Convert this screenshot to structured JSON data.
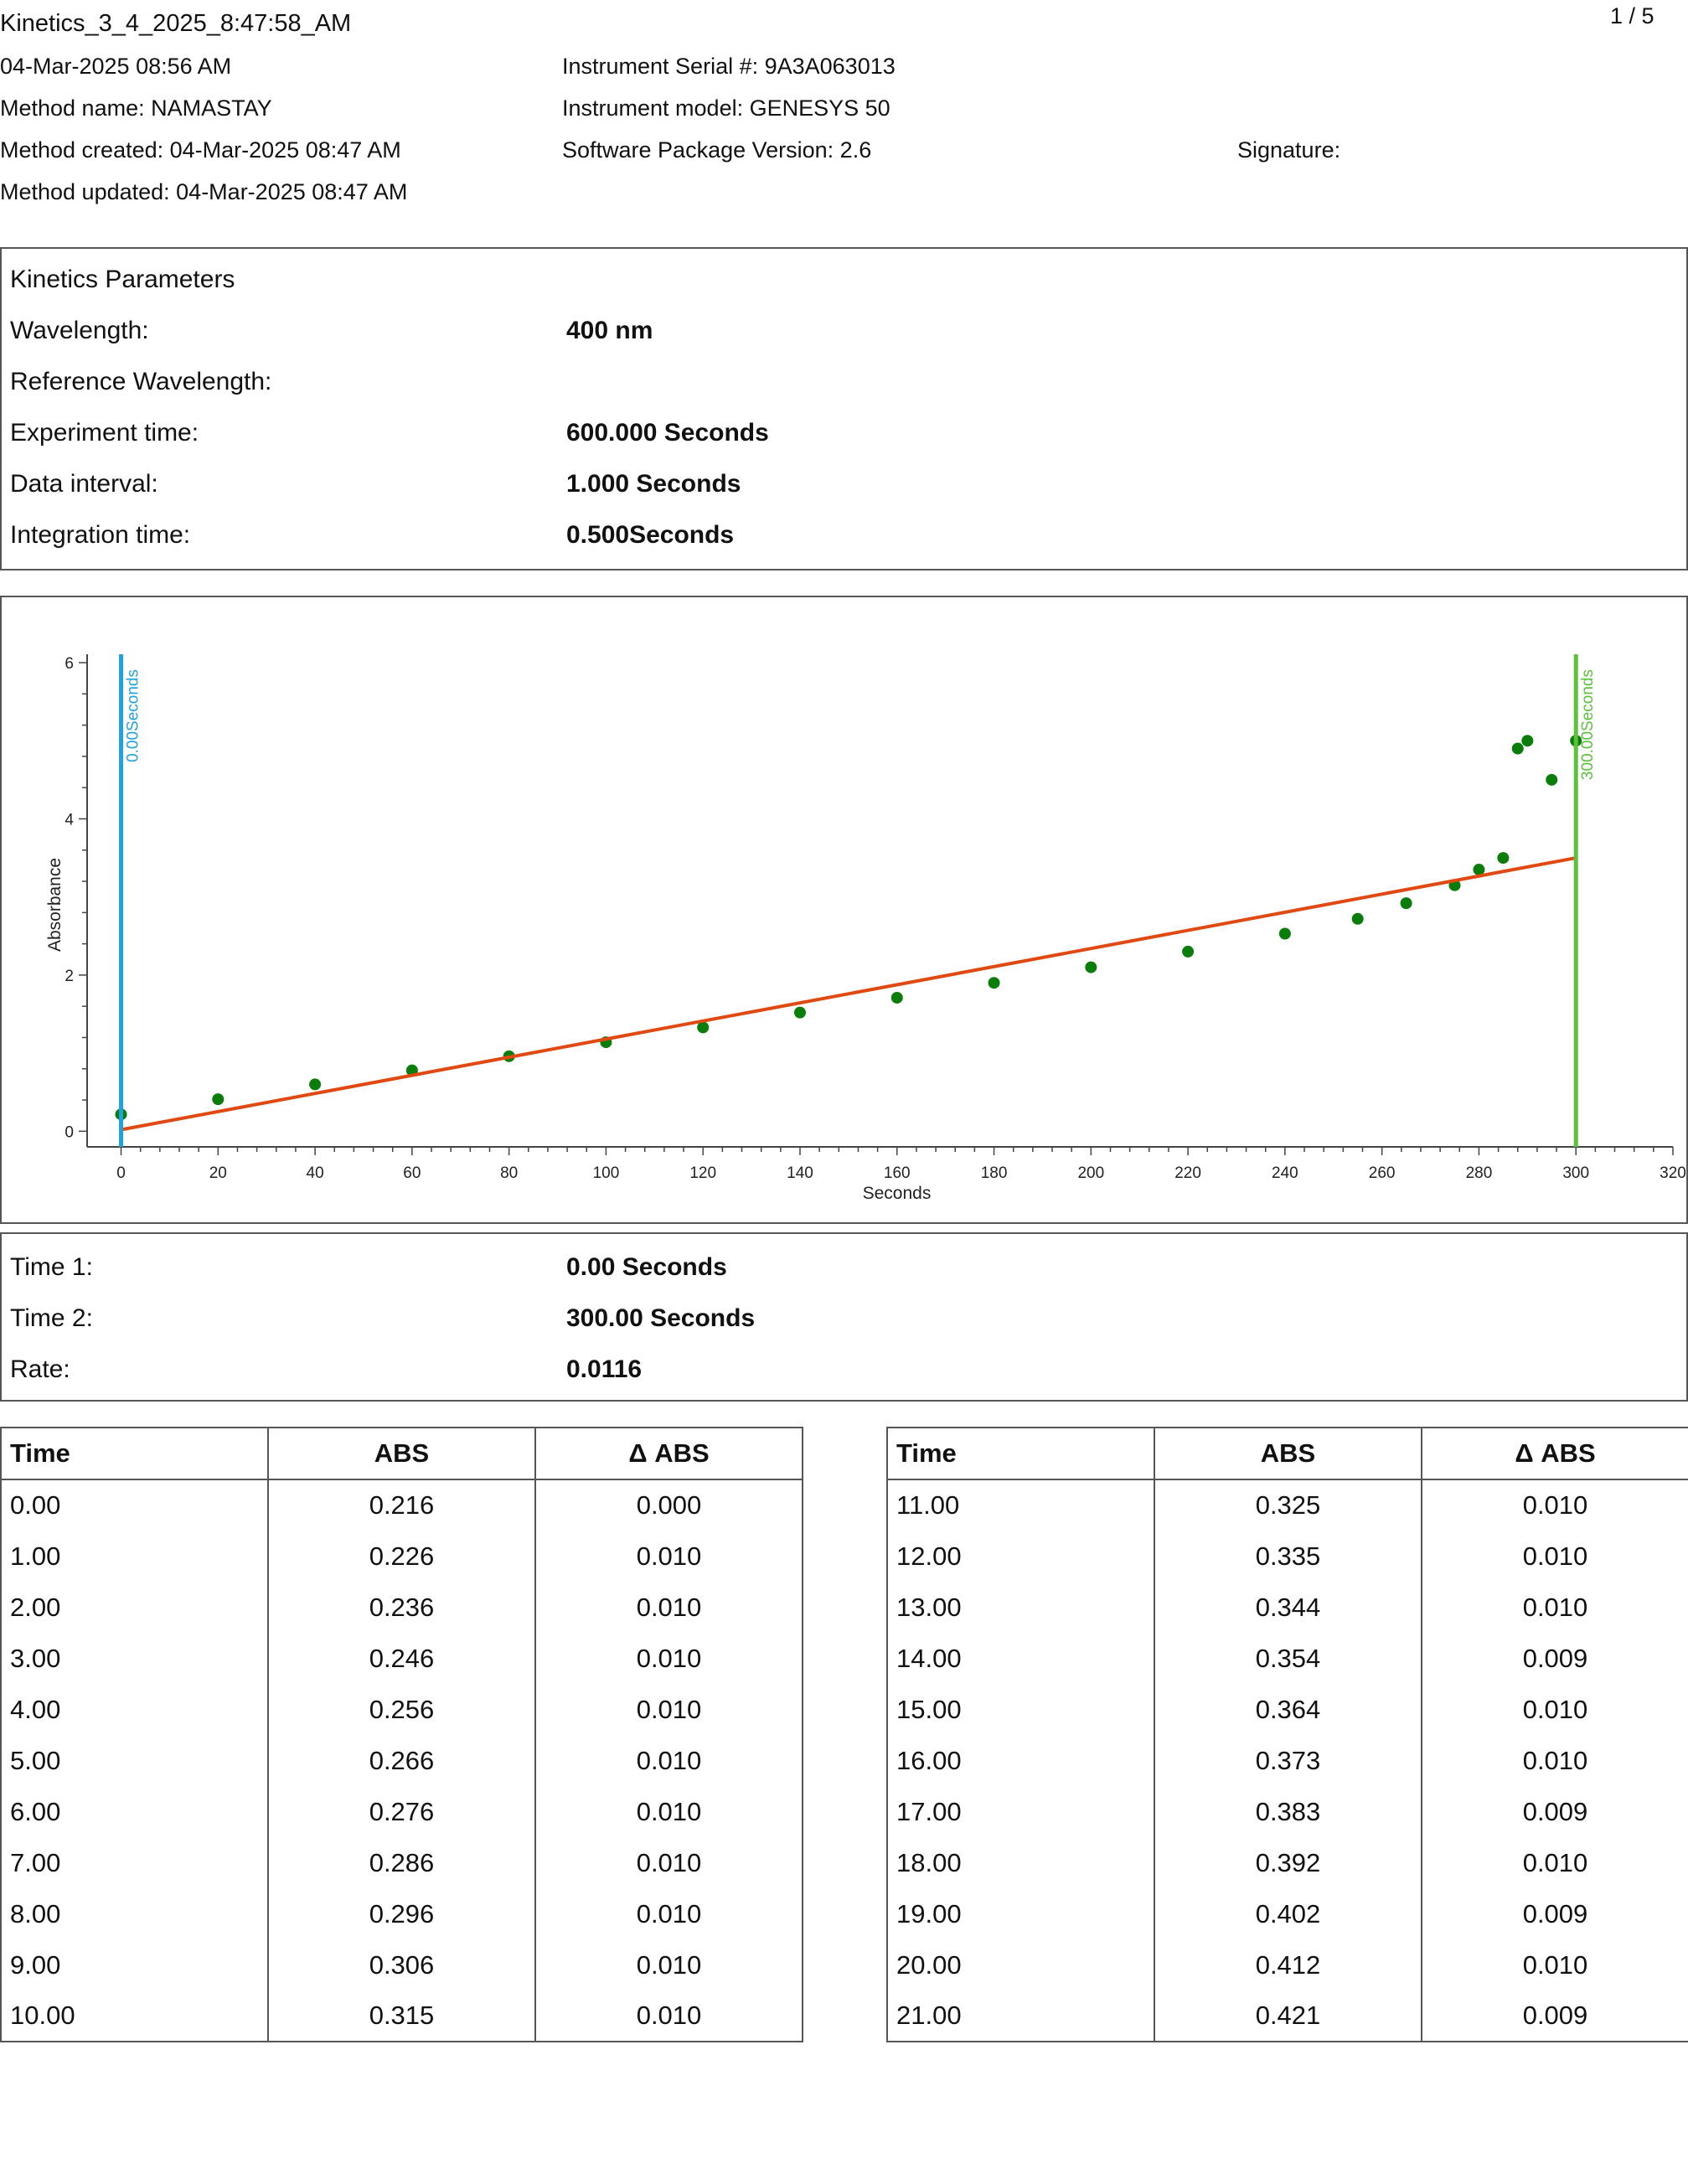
{
  "header": {
    "file_title": "Kinetics_3_4_2025_8:47:58_AM",
    "page_indicator": "1 / 5",
    "datetime": "04-Mar-2025 08:56 AM",
    "method_name": "Method name: NAMASTAY",
    "method_created": "Method created: 04-Mar-2025 08:47 AM",
    "method_updated": "Method updated: 04-Mar-2025 08:47 AM",
    "instrument_serial": "Instrument Serial #: 9A3A063013",
    "instrument_model": "Instrument model: GENESYS 50",
    "software_version": "Software Package Version: 2.6",
    "signature": "Signature:"
  },
  "parameters": {
    "heading": "Kinetics Parameters",
    "rows": [
      {
        "label": "Wavelength:",
        "value": "400 nm"
      },
      {
        "label": "Reference Wavelength:",
        "value": ""
      },
      {
        "label": "Experiment time:",
        "value": "600.000 Seconds"
      },
      {
        "label": "Data interval:",
        "value": "1.000 Seconds"
      },
      {
        "label": "Integration time:",
        "value": "0.500Seconds"
      }
    ]
  },
  "chart_data": {
    "type": "scatter",
    "xlabel": "Seconds",
    "ylabel": "Absorbance",
    "xlim": [
      -7,
      320
    ],
    "ylim": [
      -0.2,
      6.0
    ],
    "x_ticks": [
      0,
      20,
      40,
      60,
      80,
      100,
      120,
      140,
      160,
      180,
      200,
      220,
      240,
      260,
      280,
      300,
      320
    ],
    "y_ticks": [
      0,
      2,
      4,
      6
    ],
    "grid": false,
    "series": [
      {
        "color": "#0a7d0a",
        "model": "absorbance readings, one per second from 0 to 300 s; ~0.216 at 0 s rising ~0.01/s to ~2.9 at 265 s, then irregular rise to saturation at 5.0 near 290-300 s",
        "x": [
          0,
          20,
          40,
          60,
          80,
          100,
          120,
          140,
          160,
          180,
          200,
          220,
          240,
          255,
          265,
          275,
          280,
          285,
          288,
          290,
          295,
          300
        ],
        "y": [
          0.216,
          0.41,
          0.6,
          0.78,
          0.96,
          1.14,
          1.33,
          1.52,
          1.71,
          1.9,
          2.1,
          2.3,
          2.53,
          2.72,
          2.92,
          3.15,
          3.35,
          3.5,
          4.9,
          5.0,
          4.5,
          5.0
        ]
      }
    ],
    "fit_line": {
      "color": "#e04a12",
      "x": [
        0,
        300
      ],
      "y": [
        0.02,
        3.5
      ]
    },
    "markers": [
      {
        "x": 0,
        "label": "0.00Seconds",
        "color": "#1fa3e0"
      },
      {
        "x": 300,
        "label": "300.00Seconds",
        "color": "#5cc23a"
      }
    ]
  },
  "results": {
    "rows": [
      {
        "label": "Time 1:",
        "value": "0.00 Seconds"
      },
      {
        "label": "Time 2:",
        "value": "300.00 Seconds"
      },
      {
        "label": "Rate:",
        "value": "0.0116"
      }
    ]
  },
  "tables": {
    "columns": [
      "Time",
      "ABS",
      "Δ ABS"
    ],
    "left": [
      [
        "0.00",
        "0.216",
        "0.000"
      ],
      [
        "1.00",
        "0.226",
        "0.010"
      ],
      [
        "2.00",
        "0.236",
        "0.010"
      ],
      [
        "3.00",
        "0.246",
        "0.010"
      ],
      [
        "4.00",
        "0.256",
        "0.010"
      ],
      [
        "5.00",
        "0.266",
        "0.010"
      ],
      [
        "6.00",
        "0.276",
        "0.010"
      ],
      [
        "7.00",
        "0.286",
        "0.010"
      ],
      [
        "8.00",
        "0.296",
        "0.010"
      ],
      [
        "9.00",
        "0.306",
        "0.010"
      ],
      [
        "10.00",
        "0.315",
        "0.010"
      ]
    ],
    "right": [
      [
        "11.00",
        "0.325",
        "0.010"
      ],
      [
        "12.00",
        "0.335",
        "0.010"
      ],
      [
        "13.00",
        "0.344",
        "0.010"
      ],
      [
        "14.00",
        "0.354",
        "0.009"
      ],
      [
        "15.00",
        "0.364",
        "0.010"
      ],
      [
        "16.00",
        "0.373",
        "0.010"
      ],
      [
        "17.00",
        "0.383",
        "0.009"
      ],
      [
        "18.00",
        "0.392",
        "0.010"
      ],
      [
        "19.00",
        "0.402",
        "0.009"
      ],
      [
        "20.00",
        "0.412",
        "0.010"
      ],
      [
        "21.00",
        "0.421",
        "0.009"
      ]
    ]
  }
}
